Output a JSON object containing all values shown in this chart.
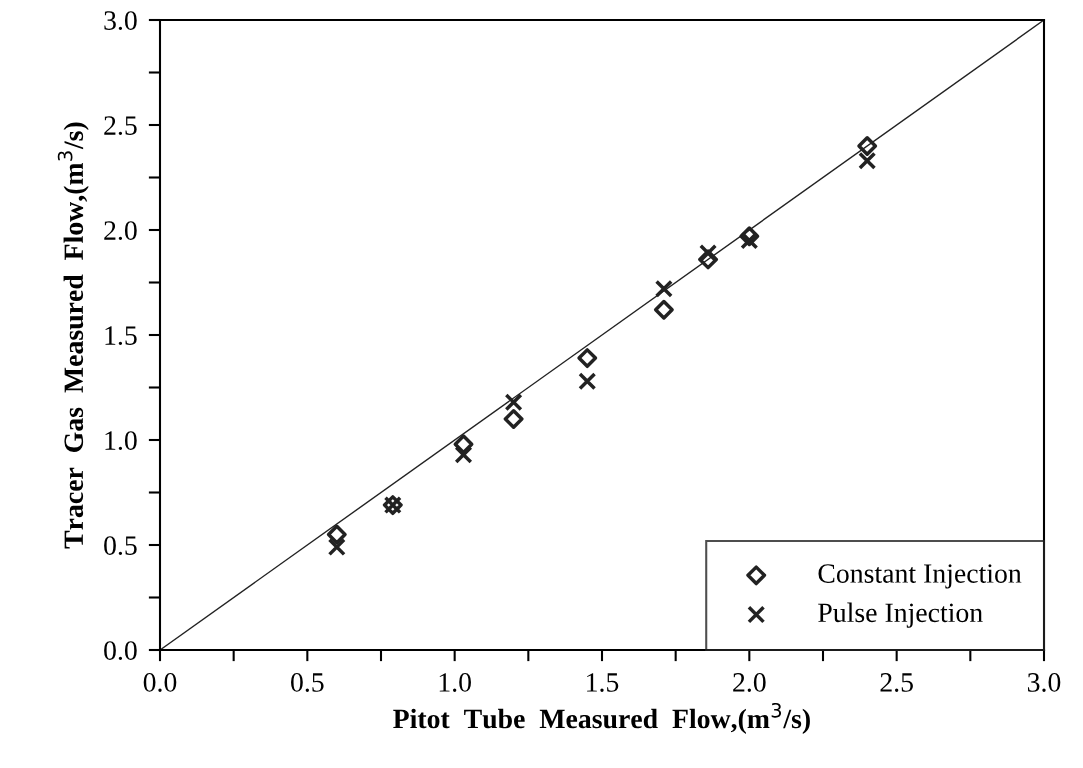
{
  "chart_data": {
    "type": "scatter",
    "xlabel": "Pitot  Tube  Measured  Flow,(m$^{3}$/s)",
    "ylabel": "Tracer  Gas  Measured  Flow,(m$^{3}$/s)",
    "x": [
      0.6,
      0.79,
      1.03,
      1.2,
      1.45,
      1.71,
      1.86,
      2.0,
      2.4
    ],
    "series": [
      {
        "name": "Constant Injection",
        "color": "#222222",
        "marker": "diamond",
        "values": [
          0.55,
          0.69,
          0.98,
          1.1,
          1.39,
          1.62,
          1.86,
          1.97,
          2.4
        ]
      },
      {
        "name": "Pulse Injection",
        "color": "#222222",
        "marker": "cross",
        "values": [
          0.49,
          0.69,
          0.93,
          1.18,
          1.28,
          1.72,
          1.89,
          1.95,
          2.33
        ]
      },
      {
        "type": "line",
        "color": "#222222",
        "marker": "none",
        "x": [
          0,
          3
        ],
        "values": [
          0,
          3
        ]
      }
    ],
    "xlim": [
      0,
      3
    ],
    "ylim": [
      0,
      3
    ],
    "xticks": [
      {
        "value": 0,
        "label": "0.0"
      },
      {
        "value": 0.25,
        "label": null
      },
      {
        "value": 0.5,
        "label": "0.5"
      },
      {
        "value": 0.75,
        "label": null
      },
      {
        "value": 1.0,
        "label": "1.0"
      },
      {
        "value": 1.25,
        "label": null
      },
      {
        "value": 1.5,
        "label": "1.5"
      },
      {
        "value": 1.75,
        "label": null
      },
      {
        "value": 2.0,
        "label": "2.0"
      },
      {
        "value": 2.25,
        "label": null
      },
      {
        "value": 2.5,
        "label": "2.5"
      },
      {
        "value": 2.75,
        "label": null
      },
      {
        "value": 3.0,
        "label": "3.0"
      }
    ],
    "yticks": [
      {
        "value": 0,
        "label": "0.0"
      },
      {
        "value": 0.25,
        "label": null
      },
      {
        "value": 0.5,
        "label": "0.5"
      },
      {
        "value": 0.75,
        "label": null
      },
      {
        "value": 1.0,
        "label": "1.0"
      },
      {
        "value": 1.25,
        "label": null
      },
      {
        "value": 1.5,
        "label": "1.5"
      },
      {
        "value": 1.75,
        "label": null
      },
      {
        "value": 2.0,
        "label": "2.0"
      },
      {
        "value": 2.25,
        "label": null
      },
      {
        "value": 2.5,
        "label": "2.5"
      },
      {
        "value": 2.75,
        "label": null
      },
      {
        "value": 3.0,
        "label": "3.0"
      }
    ],
    "grid": false,
    "legend": "bottom right"
  }
}
